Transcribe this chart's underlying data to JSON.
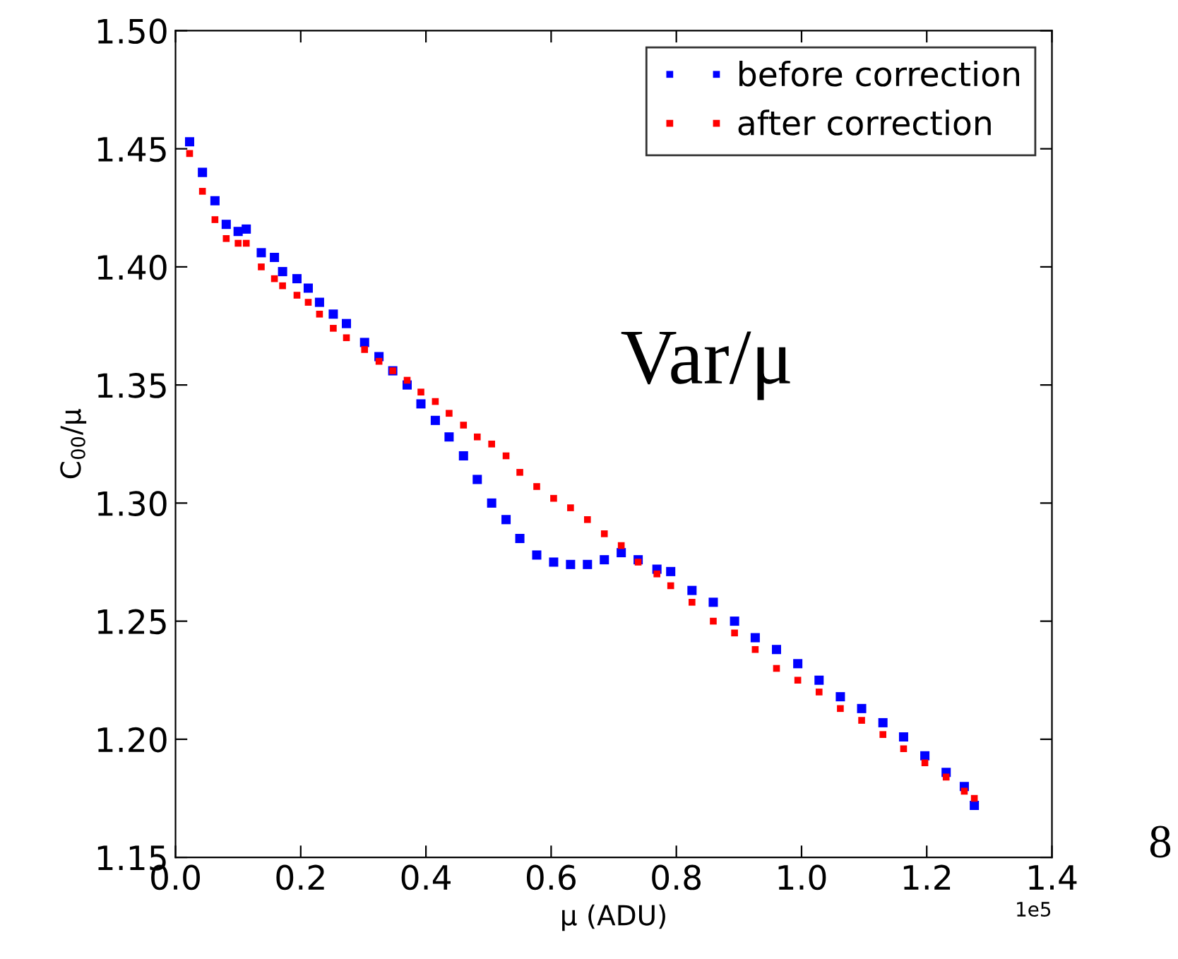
{
  "chart_data": {
    "type": "scatter",
    "xlabel": "μ (ADU)",
    "ylabel": "C$_{00}$/μ",
    "x": [
      0.0225,
      0.043,
      0.063,
      0.081,
      0.1,
      0.113,
      0.137,
      0.158,
      0.171,
      0.194,
      0.212,
      0.23,
      0.252,
      0.273,
      0.302,
      0.325,
      0.347,
      0.37,
      0.392,
      0.415,
      0.437,
      0.46,
      0.482,
      0.505,
      0.528,
      0.55,
      0.577,
      0.604,
      0.631,
      0.658,
      0.685,
      0.712,
      0.739,
      0.769,
      0.791,
      0.825,
      0.859,
      0.893,
      0.926,
      0.96,
      0.994,
      1.028,
      1.062,
      1.096,
      1.13,
      1.163,
      1.197,
      1.231,
      1.26,
      1.276
    ],
    "series": [
      {
        "name": "before correction",
        "color": "#0000ff",
        "values": [
          1.453,
          1.44,
          1.428,
          1.418,
          1.415,
          1.416,
          1.406,
          1.404,
          1.398,
          1.395,
          1.391,
          1.385,
          1.38,
          1.376,
          1.368,
          1.362,
          1.356,
          1.35,
          1.342,
          1.335,
          1.328,
          1.32,
          1.31,
          1.3,
          1.293,
          1.285,
          1.278,
          1.275,
          1.274,
          1.274,
          1.276,
          1.279,
          1.276,
          1.272,
          1.271,
          1.263,
          1.258,
          1.25,
          1.243,
          1.238,
          1.232,
          1.225,
          1.218,
          1.213,
          1.207,
          1.201,
          1.193,
          1.186,
          1.18,
          1.172
        ]
      },
      {
        "name": "after correction",
        "color": "#ff0000",
        "values": [
          1.448,
          1.432,
          1.42,
          1.412,
          1.41,
          1.41,
          1.4,
          1.395,
          1.392,
          1.388,
          1.385,
          1.38,
          1.374,
          1.37,
          1.365,
          1.36,
          1.356,
          1.352,
          1.347,
          1.343,
          1.338,
          1.333,
          1.328,
          1.325,
          1.32,
          1.313,
          1.307,
          1.302,
          1.298,
          1.293,
          1.287,
          1.282,
          1.275,
          1.27,
          1.265,
          1.258,
          1.25,
          1.245,
          1.238,
          1.23,
          1.225,
          1.22,
          1.213,
          1.208,
          1.202,
          1.196,
          1.19,
          1.184,
          1.178,
          1.175
        ]
      }
    ],
    "xlim": [
      0,
      1.4
    ],
    "xticks": [
      {
        "value": 0,
        "label": "0.0"
      },
      0.2,
      0.4,
      0.6,
      0.8,
      {
        "value": 1,
        "label": "1.0"
      },
      1.2,
      1.4
    ],
    "ylim": [
      1.15,
      1.5
    ],
    "yticks": [
      {
        "value": 1.15,
        "label": "1.15"
      },
      {
        "value": 1.2,
        "label": "1.20"
      },
      {
        "value": 1.25,
        "label": "1.25"
      },
      {
        "value": 1.3,
        "label": "1.30"
      },
      {
        "value": 1.35,
        "label": "1.35"
      },
      {
        "value": 1.4,
        "label": "1.40"
      },
      {
        "value": 1.45,
        "label": "1.45"
      },
      {
        "value": 1.5,
        "label": "1.50"
      }
    ],
    "annotations": [
      "1e5",
      "Var/μ",
      "8"
    ],
    "legend": "top right",
    "marker": "square",
    "grid": false
  }
}
